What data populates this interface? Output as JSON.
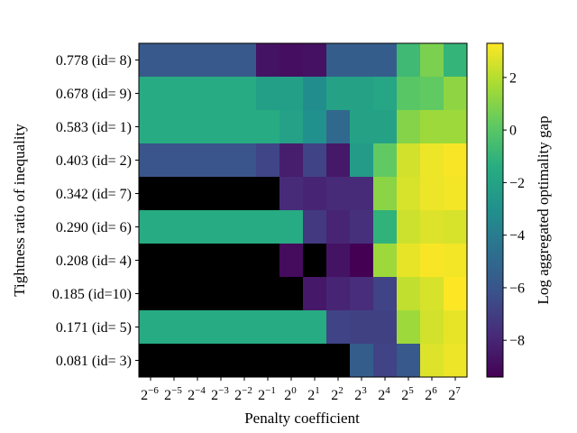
{
  "chart_data": {
    "type": "heatmap",
    "title": "",
    "xlabel": "Penalty coefficient",
    "ylabel": "Tightness ratio of inequality",
    "colorbar_label": "Log aggregated optimality gap",
    "colormap": "viridis",
    "missing_color": "#000000",
    "clim": [
      -9.4,
      3.3
    ],
    "colorbar_ticks": [
      "2",
      "0",
      "−2",
      "−4",
      "−6",
      "−8"
    ],
    "colorbar_tick_values": [
      2,
      0,
      -2,
      -4,
      -6,
      -8
    ],
    "x_tick_labels": [
      {
        "base": "2",
        "exp": "−6"
      },
      {
        "base": "2",
        "exp": "−5"
      },
      {
        "base": "2",
        "exp": "−4"
      },
      {
        "base": "2",
        "exp": "−3"
      },
      {
        "base": "2",
        "exp": "−2"
      },
      {
        "base": "2",
        "exp": "−1"
      },
      {
        "base": "2",
        "exp": "0"
      },
      {
        "base": "2",
        "exp": "1"
      },
      {
        "base": "2",
        "exp": "2"
      },
      {
        "base": "2",
        "exp": "3"
      },
      {
        "base": "2",
        "exp": "4"
      },
      {
        "base": "2",
        "exp": "5"
      },
      {
        "base": "2",
        "exp": "6"
      },
      {
        "base": "2",
        "exp": "7"
      }
    ],
    "y_tick_labels": [
      "0.778 (id= 8)",
      "0.678 (id= 9)",
      "0.583 (id= 1)",
      "0.403 (id= 2)",
      "0.342 (id= 7)",
      "0.290 (id= 6)",
      "0.208 (id= 4)",
      "0.185 (id=10)",
      "0.171 (id= 5)",
      "0.081 (id= 3)"
    ],
    "values": [
      [
        -5.8,
        -5.8,
        -5.8,
        -5.8,
        -5.8,
        -8.7,
        -8.9,
        -8.8,
        -5.6,
        -5.6,
        -5.6,
        -0.7,
        0.8,
        -1.0
      ],
      [
        -1.5,
        -1.5,
        -1.5,
        -1.5,
        -1.5,
        -2.2,
        -2.2,
        -3.2,
        -2.0,
        -2.0,
        -1.8,
        0.0,
        0.2,
        1.2
      ],
      [
        -1.5,
        -1.5,
        -1.5,
        -1.5,
        -1.5,
        -1.5,
        -2.1,
        -3.0,
        -5.0,
        -2.0,
        -2.0,
        1.0,
        1.5,
        1.5
      ],
      [
        -6.0,
        -6.0,
        -6.0,
        -6.0,
        -6.0,
        -6.7,
        -8.3,
        -6.8,
        -8.5,
        -2.4,
        0.2,
        2.5,
        3.0,
        3.2
      ],
      [
        null,
        null,
        null,
        null,
        null,
        null,
        -7.8,
        -8.0,
        -7.8,
        -7.8,
        1.1,
        2.6,
        3.0,
        3.1
      ],
      [
        -1.5,
        -1.5,
        -1.5,
        -1.5,
        -1.5,
        -1.5,
        -1.5,
        -7.2,
        -8.0,
        -7.6,
        -1.1,
        2.4,
        2.7,
        2.6
      ],
      [
        null,
        null,
        null,
        null,
        null,
        null,
        -9.0,
        null,
        -8.7,
        -9.4,
        1.5,
        2.9,
        3.2,
        3.1
      ],
      [
        null,
        null,
        null,
        null,
        null,
        null,
        null,
        -8.5,
        -8.0,
        -7.7,
        -6.8,
        2.2,
        2.6,
        3.3
      ],
      [
        -1.5,
        -1.5,
        -1.5,
        -1.5,
        -1.5,
        -1.5,
        -1.5,
        -1.5,
        -6.8,
        -6.9,
        -6.9,
        1.5,
        2.5,
        2.9
      ],
      [
        null,
        null,
        null,
        null,
        null,
        null,
        null,
        null,
        null,
        -5.6,
        -6.8,
        -5.8,
        2.7,
        3.0
      ]
    ]
  }
}
